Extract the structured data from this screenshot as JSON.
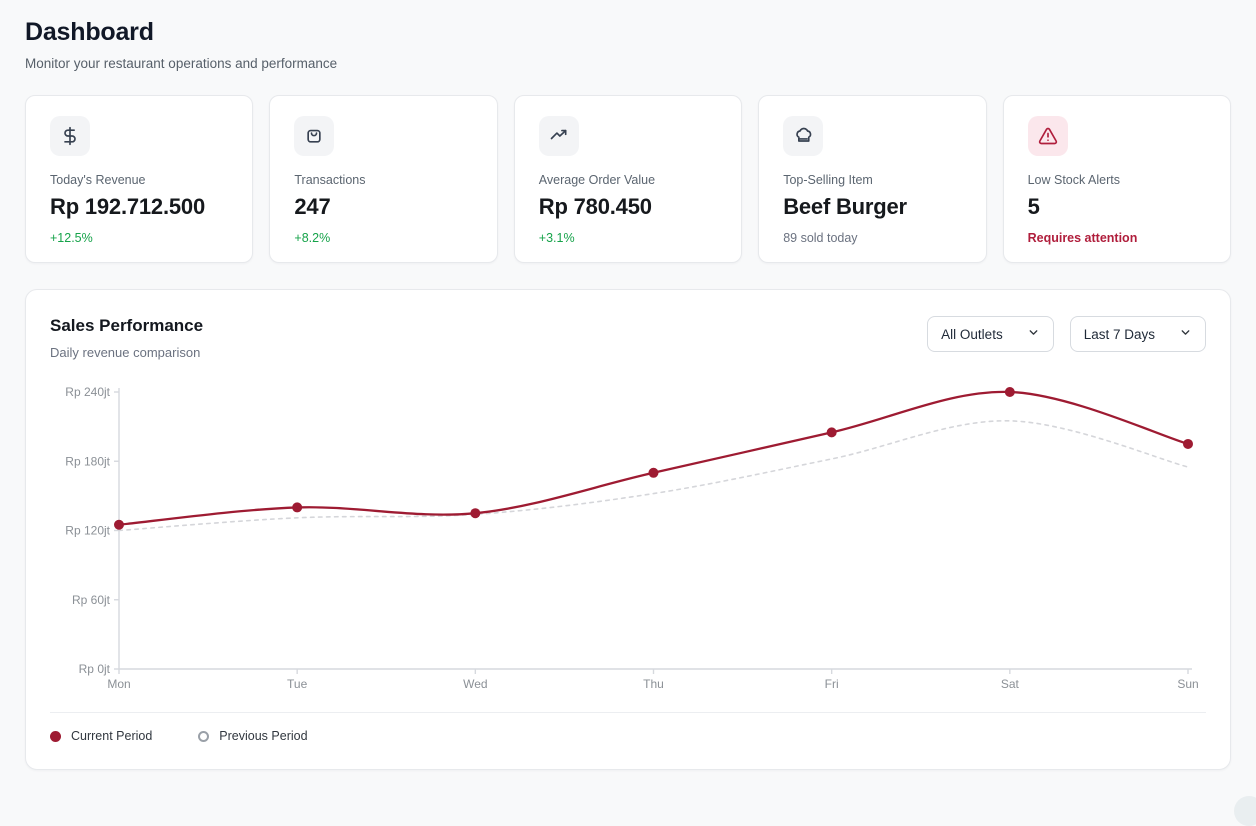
{
  "page": {
    "title": "Dashboard",
    "subtitle": "Monitor your restaurant operations and performance"
  },
  "stat_cards": [
    {
      "icon": "dollar-icon",
      "label": "Today's Revenue",
      "value": "Rp 192.712.500",
      "delta": "+12.5%",
      "delta_type": "positive"
    },
    {
      "icon": "shopping-bag-icon",
      "label": "Transactions",
      "value": "247",
      "delta": "+8.2%",
      "delta_type": "positive"
    },
    {
      "icon": "trending-up-icon",
      "label": "Average Order Value",
      "value": "Rp 780.450",
      "delta": "+3.1%",
      "delta_type": "positive"
    },
    {
      "icon": "chef-hat-icon",
      "label": "Top-Selling Item",
      "value": "Beef Burger",
      "delta": "89 sold today",
      "delta_type": "neutral"
    },
    {
      "icon": "alert-triangle-icon",
      "label": "Low Stock Alerts",
      "value": "5",
      "delta": "Requires attention",
      "delta_type": "alert"
    }
  ],
  "sales_section": {
    "title": "Sales Performance",
    "subtitle": "Daily revenue comparison",
    "filters": {
      "outlet": "All Outlets",
      "range": "Last 7 Days"
    },
    "legend": [
      {
        "label": "Current Period",
        "marker": "filled-dot"
      },
      {
        "label": "Previous Period",
        "marker": "ring-dot"
      }
    ]
  },
  "chart_data": {
    "type": "line",
    "title": "Sales Performance",
    "subtitle": "Daily revenue comparison",
    "x": [
      "Mon",
      "Tue",
      "Wed",
      "Thu",
      "Fri",
      "Sat",
      "Sun"
    ],
    "series": [
      {
        "name": "Current Period",
        "style": "solid",
        "color": "#9e1b32",
        "points": true,
        "values": [
          125,
          140,
          135,
          170,
          205,
          240,
          195
        ]
      },
      {
        "name": "Previous Period",
        "style": "dashed",
        "color": "#d5d6da",
        "points": false,
        "values": [
          120,
          131,
          134,
          152,
          182,
          215,
          175
        ]
      }
    ],
    "unit": "jt (millions of Rupiah)",
    "yticks": [
      0,
      60,
      120,
      180,
      240
    ],
    "ytick_labels": [
      "Rp 0jt",
      "Rp 60jt",
      "Rp 120jt",
      "Rp 180jt",
      "Rp 240jt"
    ],
    "ylim": [
      0,
      240
    ],
    "grid": false,
    "legend_position": "bottom-left"
  },
  "colors": {
    "accent_red": "#9e1b32",
    "alert_red": "#b01e3c",
    "alert_bg": "#fbe7ec",
    "positive_green": "#16a34a",
    "axis_gray": "#d6d9de",
    "tick_text": "#8b9096"
  }
}
